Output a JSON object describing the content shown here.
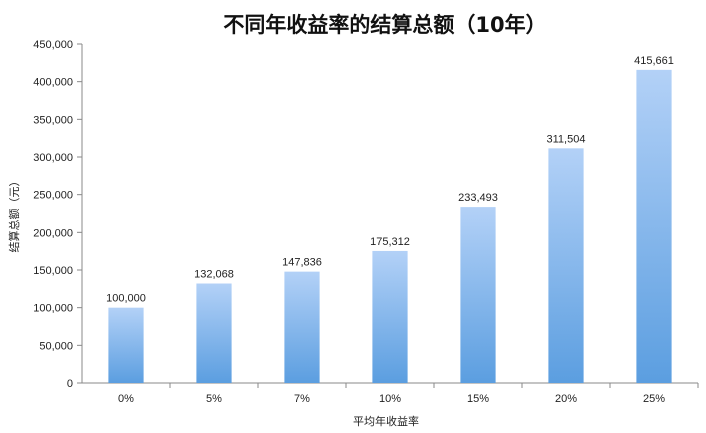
{
  "chart_data": {
    "type": "bar",
    "title": "不同年收益率的结算总额（10年）",
    "xlabel": "平均年收益率",
    "ylabel": "结算总额（元）",
    "categories": [
      "0%",
      "5%",
      "7%",
      "10%",
      "15%",
      "20%",
      "25%"
    ],
    "values": [
      100000,
      132068,
      147836,
      175312,
      233493,
      311504,
      415661
    ],
    "value_labels": [
      "100,000",
      "132,068",
      "147,836",
      "175,312",
      "233,493",
      "311,504",
      "415,661"
    ],
    "ylim": [
      0,
      450000
    ],
    "yticks": [
      0,
      50000,
      100000,
      150000,
      200000,
      250000,
      300000,
      350000,
      400000,
      450000
    ],
    "ytick_labels": [
      "0",
      "50,000",
      "100,000",
      "150,000",
      "200,000",
      "250,000",
      "300,000",
      "350,000",
      "400,000",
      "450,000"
    ],
    "grid": false,
    "legend": "none",
    "bar_color_top": "#b3d1f7",
    "bar_color_bottom": "#5b9ee0"
  }
}
